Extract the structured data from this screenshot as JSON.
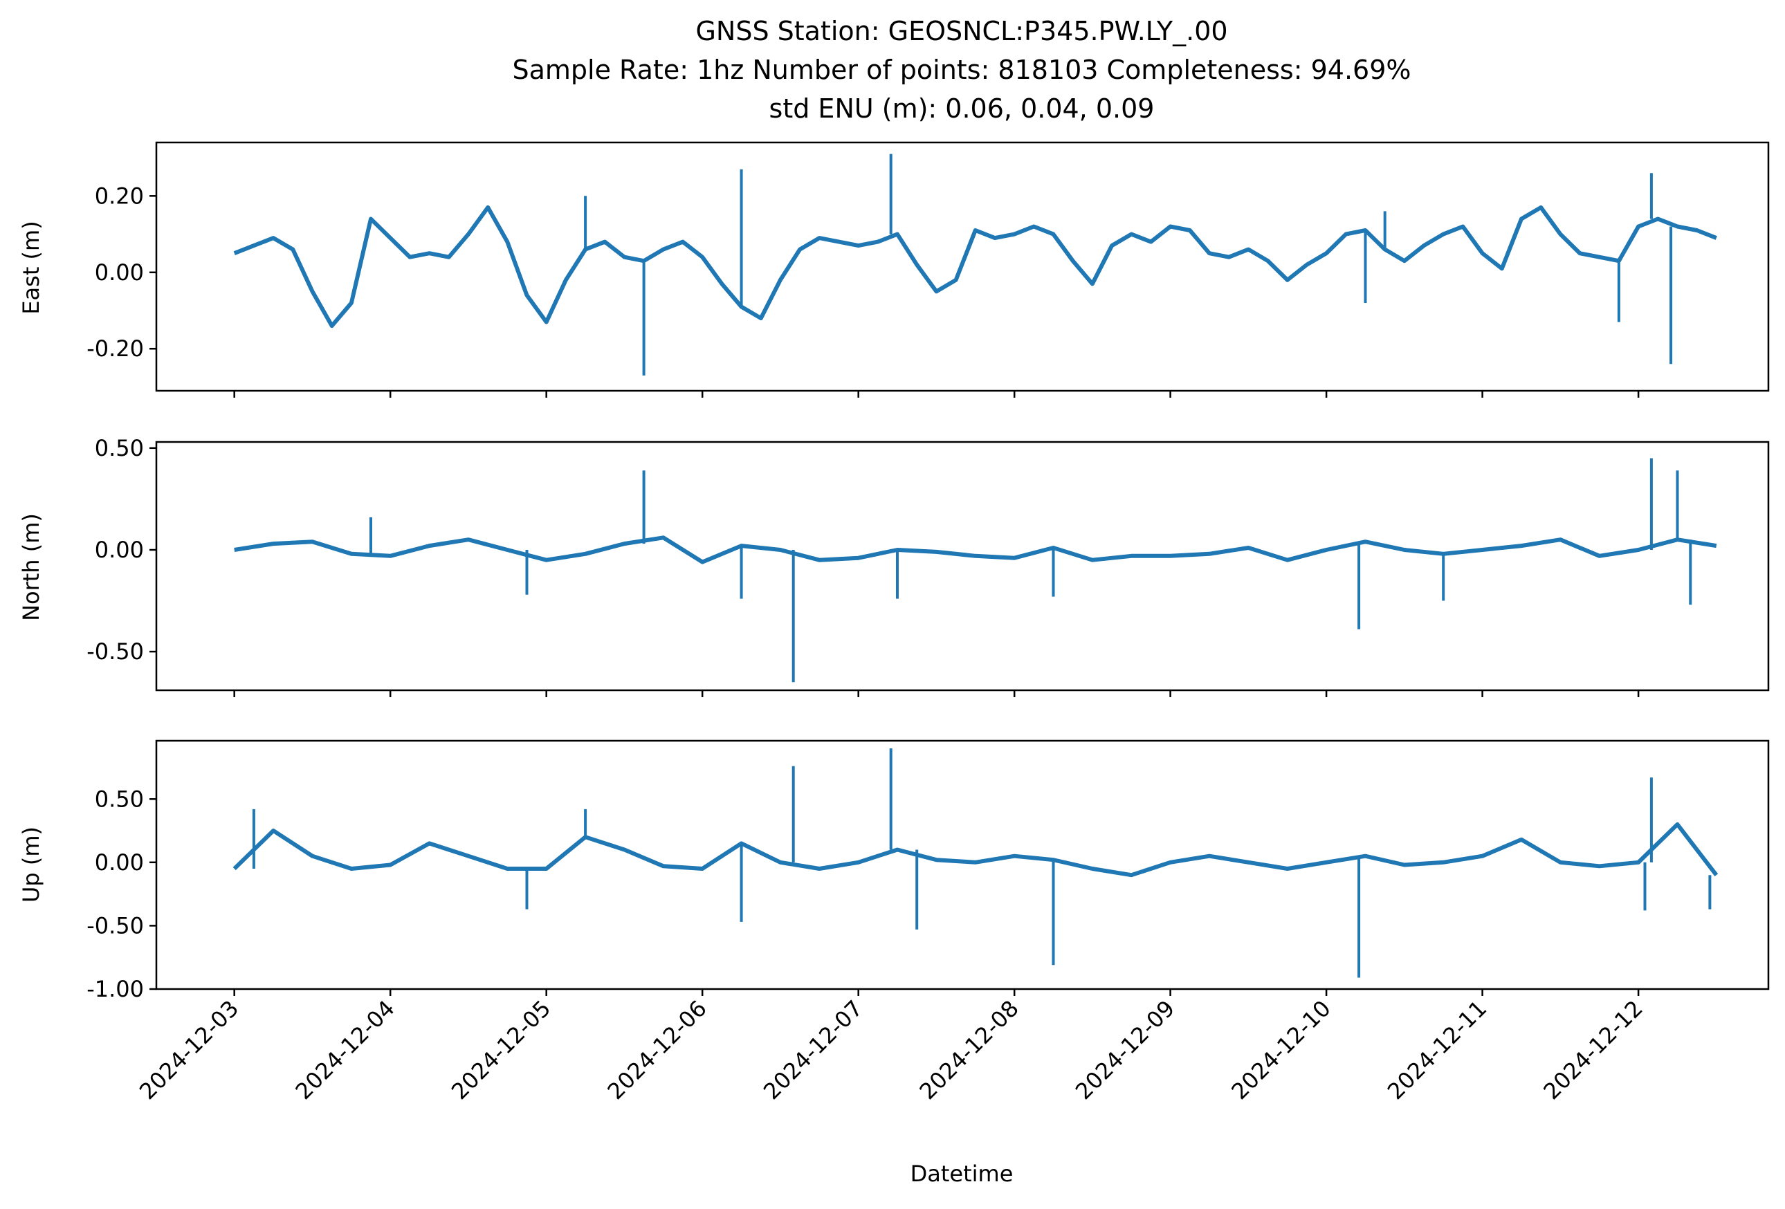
{
  "title_lines": [
    "GNSS Station: GEOSNCL:P345.PW.LY_.00",
    "Sample Rate: 1hz   Number of points: 818103    Completeness:  94.69%",
    "std ENU (m):  0.06, 0.04, 0.09"
  ],
  "colors": {
    "series": "#1f77b4",
    "axes": "#000000",
    "background": "#ffffff"
  },
  "chart_data": [
    {
      "type": "line",
      "ylabel": "East (m)",
      "xlabel": "",
      "x_tick_labels_visible": false,
      "ylim": [
        -0.31,
        0.34
      ],
      "yticks": [
        0.2,
        0.0,
        -0.2
      ],
      "ytick_labels": [
        "0.20",
        "0.00",
        "-0.20"
      ],
      "xlim": [
        "2024-12-02 12:00",
        "2024-12-12 20:00"
      ],
      "grid": false,
      "series": [
        {
          "x": [
            "2024-12-03 00:00",
            "2024-12-03 03:00",
            "2024-12-03 06:00",
            "2024-12-03 09:00",
            "2024-12-03 12:00",
            "2024-12-03 15:00",
            "2024-12-03 18:00",
            "2024-12-03 21:00",
            "2024-12-04 00:00",
            "2024-12-04 03:00",
            "2024-12-04 06:00",
            "2024-12-04 09:00",
            "2024-12-04 12:00",
            "2024-12-04 15:00",
            "2024-12-04 18:00",
            "2024-12-04 21:00",
            "2024-12-05 00:00",
            "2024-12-05 03:00",
            "2024-12-05 06:00",
            "2024-12-05 09:00",
            "2024-12-05 12:00",
            "2024-12-05 15:00",
            "2024-12-05 18:00",
            "2024-12-05 21:00",
            "2024-12-06 00:00",
            "2024-12-06 03:00",
            "2024-12-06 06:00",
            "2024-12-06 09:00",
            "2024-12-06 12:00",
            "2024-12-06 15:00",
            "2024-12-06 18:00",
            "2024-12-06 21:00",
            "2024-12-07 00:00",
            "2024-12-07 03:00",
            "2024-12-07 06:00",
            "2024-12-07 09:00",
            "2024-12-07 12:00",
            "2024-12-07 15:00",
            "2024-12-07 18:00",
            "2024-12-07 21:00",
            "2024-12-08 00:00",
            "2024-12-08 03:00",
            "2024-12-08 06:00",
            "2024-12-08 09:00",
            "2024-12-08 12:00",
            "2024-12-08 15:00",
            "2024-12-08 18:00",
            "2024-12-08 21:00",
            "2024-12-09 00:00",
            "2024-12-09 03:00",
            "2024-12-09 06:00",
            "2024-12-09 09:00",
            "2024-12-09 12:00",
            "2024-12-09 15:00",
            "2024-12-09 18:00",
            "2024-12-09 21:00",
            "2024-12-10 00:00",
            "2024-12-10 03:00",
            "2024-12-10 06:00",
            "2024-12-10 09:00",
            "2024-12-10 12:00",
            "2024-12-10 15:00",
            "2024-12-10 18:00",
            "2024-12-10 21:00",
            "2024-12-11 00:00",
            "2024-12-11 03:00",
            "2024-12-11 06:00",
            "2024-12-11 09:00",
            "2024-12-11 12:00",
            "2024-12-11 15:00",
            "2024-12-11 18:00",
            "2024-12-11 21:00",
            "2024-12-12 00:00",
            "2024-12-12 03:00",
            "2024-12-12 06:00",
            "2024-12-12 09:00",
            "2024-12-12 12:00"
          ],
          "y": [
            0.05,
            0.07,
            0.09,
            0.06,
            -0.05,
            -0.14,
            -0.08,
            0.14,
            0.09,
            0.04,
            0.05,
            0.04,
            0.1,
            0.17,
            0.08,
            -0.06,
            -0.13,
            -0.02,
            0.06,
            0.08,
            0.04,
            0.03,
            0.06,
            0.08,
            0.04,
            -0.03,
            -0.09,
            -0.12,
            -0.02,
            0.06,
            0.09,
            0.08,
            0.07,
            0.08,
            0.1,
            0.02,
            -0.05,
            -0.02,
            0.11,
            0.09,
            0.1,
            0.12,
            0.1,
            0.03,
            -0.03,
            0.07,
            0.1,
            0.08,
            0.12,
            0.11,
            0.05,
            0.04,
            0.06,
            0.03,
            -0.02,
            0.02,
            0.05,
            0.1,
            0.11,
            0.06,
            0.03,
            0.07,
            0.1,
            0.12,
            0.05,
            0.01,
            0.14,
            0.17,
            0.1,
            0.05,
            0.04,
            0.03,
            0.12,
            0.14,
            0.12,
            0.11,
            0.09
          ]
        }
      ],
      "spikes": [
        {
          "x": "2024-12-05 15:00",
          "y": -0.27
        },
        {
          "x": "2024-12-06 06:00",
          "y": 0.27
        },
        {
          "x": "2024-12-07 05:00",
          "y": 0.31
        },
        {
          "x": "2024-12-05 06:00",
          "y": 0.2
        },
        {
          "x": "2024-12-11 21:00",
          "y": -0.13
        },
        {
          "x": "2024-12-12 02:00",
          "y": 0.26
        },
        {
          "x": "2024-12-12 05:00",
          "y": -0.24
        },
        {
          "x": "2024-12-10 06:00",
          "y": -0.08
        },
        {
          "x": "2024-12-10 09:00",
          "y": 0.16
        }
      ]
    },
    {
      "type": "line",
      "ylabel": "North (m)",
      "xlabel": "",
      "x_tick_labels_visible": false,
      "ylim": [
        -0.69,
        0.53
      ],
      "yticks": [
        0.5,
        0.0,
        -0.5
      ],
      "ytick_labels": [
        "0.50",
        "0.00",
        "-0.50"
      ],
      "xlim": [
        "2024-12-02 12:00",
        "2024-12-12 20:00"
      ],
      "grid": false,
      "series": [
        {
          "x": [
            "2024-12-03 00:00",
            "2024-12-03 06:00",
            "2024-12-03 12:00",
            "2024-12-03 18:00",
            "2024-12-04 00:00",
            "2024-12-04 06:00",
            "2024-12-04 12:00",
            "2024-12-04 18:00",
            "2024-12-05 00:00",
            "2024-12-05 06:00",
            "2024-12-05 12:00",
            "2024-12-05 18:00",
            "2024-12-06 00:00",
            "2024-12-06 06:00",
            "2024-12-06 12:00",
            "2024-12-06 18:00",
            "2024-12-07 00:00",
            "2024-12-07 06:00",
            "2024-12-07 12:00",
            "2024-12-07 18:00",
            "2024-12-08 00:00",
            "2024-12-08 06:00",
            "2024-12-08 12:00",
            "2024-12-08 18:00",
            "2024-12-09 00:00",
            "2024-12-09 06:00",
            "2024-12-09 12:00",
            "2024-12-09 18:00",
            "2024-12-10 00:00",
            "2024-12-10 06:00",
            "2024-12-10 12:00",
            "2024-12-10 18:00",
            "2024-12-11 00:00",
            "2024-12-11 06:00",
            "2024-12-11 12:00",
            "2024-12-11 18:00",
            "2024-12-12 00:00",
            "2024-12-12 06:00",
            "2024-12-12 12:00"
          ],
          "y": [
            0.0,
            0.03,
            0.04,
            -0.02,
            -0.03,
            0.02,
            0.05,
            0.0,
            -0.05,
            -0.02,
            0.03,
            0.06,
            -0.06,
            0.02,
            0.0,
            -0.05,
            -0.04,
            0.0,
            -0.01,
            -0.03,
            -0.04,
            0.01,
            -0.05,
            -0.03,
            -0.03,
            -0.02,
            0.01,
            -0.05,
            0.0,
            0.04,
            0.0,
            -0.02,
            0.0,
            0.02,
            0.05,
            -0.03,
            0.0,
            0.05,
            0.02
          ]
        }
      ],
      "spikes": [
        {
          "x": "2024-12-05 15:00",
          "y": 0.39
        },
        {
          "x": "2024-12-06 06:00",
          "y": -0.24
        },
        {
          "x": "2024-12-06 14:00",
          "y": -0.65
        },
        {
          "x": "2024-12-07 06:00",
          "y": -0.24
        },
        {
          "x": "2024-12-03 21:00",
          "y": 0.16
        },
        {
          "x": "2024-12-04 21:00",
          "y": -0.22
        },
        {
          "x": "2024-12-08 06:00",
          "y": -0.23
        },
        {
          "x": "2024-12-10 05:00",
          "y": -0.39
        },
        {
          "x": "2024-12-10 18:00",
          "y": -0.25
        },
        {
          "x": "2024-12-12 02:00",
          "y": 0.45
        },
        {
          "x": "2024-12-12 06:00",
          "y": 0.39
        },
        {
          "x": "2024-12-12 08:00",
          "y": -0.27
        }
      ]
    },
    {
      "type": "line",
      "ylabel": "Up (m)",
      "xlabel": "Datetime",
      "x_tick_labels_visible": true,
      "ylim": [
        -1.0,
        0.96
      ],
      "yticks": [
        0.5,
        0.0,
        -0.5,
        -1.0
      ],
      "ytick_labels": [
        "0.50",
        "0.00",
        "-0.50",
        "-1.00"
      ],
      "xlim": [
        "2024-12-02 12:00",
        "2024-12-12 20:00"
      ],
      "xticks": [
        "2024-12-03",
        "2024-12-04",
        "2024-12-05",
        "2024-12-06",
        "2024-12-07",
        "2024-12-08",
        "2024-12-09",
        "2024-12-10",
        "2024-12-11",
        "2024-12-12"
      ],
      "xtick_labels": [
        "2024-12-03",
        "2024-12-04",
        "2024-12-05",
        "2024-12-06",
        "2024-12-07",
        "2024-12-08",
        "2024-12-09",
        "2024-12-10",
        "2024-12-11",
        "2024-12-12"
      ],
      "grid": false,
      "series": [
        {
          "x": [
            "2024-12-03 00:00",
            "2024-12-03 06:00",
            "2024-12-03 12:00",
            "2024-12-03 18:00",
            "2024-12-04 00:00",
            "2024-12-04 06:00",
            "2024-12-04 12:00",
            "2024-12-04 18:00",
            "2024-12-05 00:00",
            "2024-12-05 06:00",
            "2024-12-05 12:00",
            "2024-12-05 18:00",
            "2024-12-06 00:00",
            "2024-12-06 06:00",
            "2024-12-06 12:00",
            "2024-12-06 18:00",
            "2024-12-07 00:00",
            "2024-12-07 06:00",
            "2024-12-07 12:00",
            "2024-12-07 18:00",
            "2024-12-08 00:00",
            "2024-12-08 06:00",
            "2024-12-08 12:00",
            "2024-12-08 18:00",
            "2024-12-09 00:00",
            "2024-12-09 06:00",
            "2024-12-09 12:00",
            "2024-12-09 18:00",
            "2024-12-10 00:00",
            "2024-12-10 06:00",
            "2024-12-10 12:00",
            "2024-12-10 18:00",
            "2024-12-11 00:00",
            "2024-12-11 06:00",
            "2024-12-11 12:00",
            "2024-12-11 18:00",
            "2024-12-12 00:00",
            "2024-12-12 06:00",
            "2024-12-12 12:00"
          ],
          "y": [
            -0.05,
            0.25,
            0.05,
            -0.05,
            -0.02,
            0.15,
            0.05,
            -0.05,
            -0.05,
            0.2,
            0.1,
            -0.03,
            -0.05,
            0.15,
            0.0,
            -0.05,
            0.0,
            0.1,
            0.02,
            0.0,
            0.05,
            0.02,
            -0.05,
            -0.1,
            0.0,
            0.05,
            0.0,
            -0.05,
            0.0,
            0.05,
            -0.02,
            0.0,
            0.05,
            0.18,
            0.0,
            -0.03,
            0.0,
            0.3,
            -0.1
          ]
        }
      ],
      "spikes": [
        {
          "x": "2024-12-03 03:00",
          "y": 0.42
        },
        {
          "x": "2024-12-04 21:00",
          "y": -0.37
        },
        {
          "x": "2024-12-05 06:00",
          "y": 0.42
        },
        {
          "x": "2024-12-06 06:00",
          "y": -0.47
        },
        {
          "x": "2024-12-06 14:00",
          "y": 0.76
        },
        {
          "x": "2024-12-07 05:00",
          "y": 0.9
        },
        {
          "x": "2024-12-07 09:00",
          "y": -0.53
        },
        {
          "x": "2024-12-08 06:00",
          "y": -0.81
        },
        {
          "x": "2024-12-10 05:00",
          "y": -0.91
        },
        {
          "x": "2024-12-12 02:00",
          "y": 0.67
        },
        {
          "x": "2024-12-12 01:00",
          "y": -0.38
        },
        {
          "x": "2024-12-12 11:00",
          "y": -0.37
        }
      ]
    }
  ]
}
